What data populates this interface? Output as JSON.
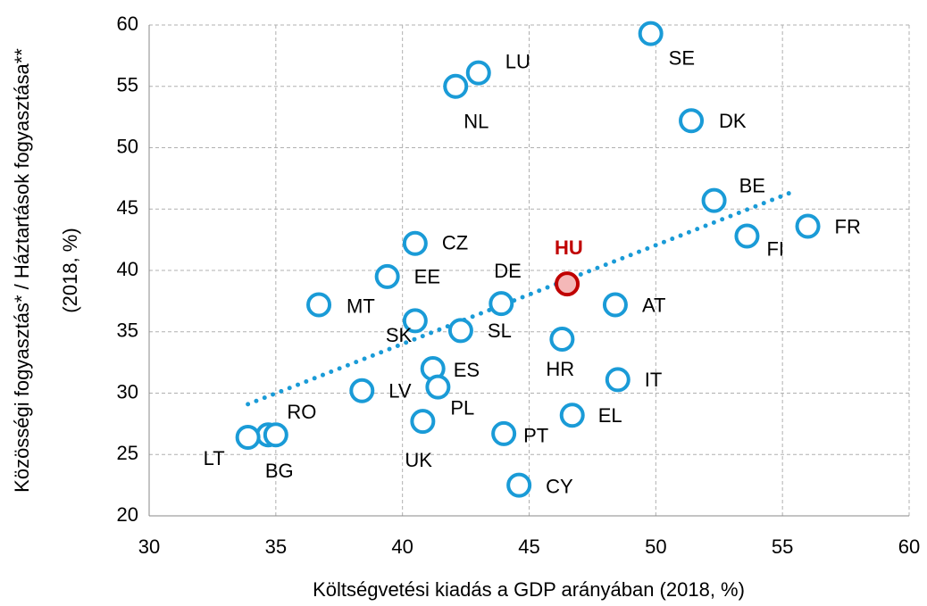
{
  "chart_data": {
    "type": "scatter",
    "xlabel": "Költségvetési kiadás a GDP arányában (2018, %)",
    "ylabel": [
      "Közösségi fogyasztás* / Háztartások fogyasztása**",
      "(2018, %)"
    ],
    "xlim": [
      30,
      60
    ],
    "xticks": [
      30,
      35,
      40,
      45,
      50,
      55,
      60
    ],
    "ylim": [
      20,
      60
    ],
    "yticks": [
      20,
      25,
      30,
      35,
      40,
      45,
      50,
      55,
      60
    ],
    "grid": true,
    "points": [
      {
        "label": "SE",
        "x": 49.8,
        "y": 59.3,
        "color": "#1a9bd7"
      },
      {
        "label": "LU",
        "x": 43.0,
        "y": 56.1,
        "color": "#1a9bd7"
      },
      {
        "label": "NL",
        "x": 42.1,
        "y": 55.0,
        "color": "#1a9bd7"
      },
      {
        "label": "DK",
        "x": 51.4,
        "y": 52.2,
        "color": "#1a9bd7"
      },
      {
        "label": "BE",
        "x": 52.3,
        "y": 45.7,
        "color": "#1a9bd7"
      },
      {
        "label": "FR",
        "x": 56.0,
        "y": 43.6,
        "color": "#1a9bd7"
      },
      {
        "label": "FI",
        "x": 53.6,
        "y": 42.8,
        "color": "#1a9bd7"
      },
      {
        "label": "CZ",
        "x": 40.5,
        "y": 42.2,
        "color": "#1a9bd7"
      },
      {
        "label": "HU",
        "x": 46.5,
        "y": 38.9,
        "color": "#c00000"
      },
      {
        "label": "EE",
        "x": 39.4,
        "y": 39.5,
        "color": "#1a9bd7"
      },
      {
        "label": "DE",
        "x": 43.9,
        "y": 37.3,
        "color": "#1a9bd7"
      },
      {
        "label": "AT",
        "x": 48.4,
        "y": 37.2,
        "color": "#1a9bd7"
      },
      {
        "label": "MT",
        "x": 36.7,
        "y": 37.2,
        "color": "#1a9bd7"
      },
      {
        "label": "SK",
        "x": 40.5,
        "y": 35.9,
        "color": "#1a9bd7"
      },
      {
        "label": "SL",
        "x": 42.3,
        "y": 35.1,
        "color": "#1a9bd7"
      },
      {
        "label": "HR",
        "x": 46.3,
        "y": 34.4,
        "color": "#1a9bd7"
      },
      {
        "label": "ES",
        "x": 41.2,
        "y": 32.0,
        "color": "#1a9bd7"
      },
      {
        "label": "IT",
        "x": 48.5,
        "y": 31.1,
        "color": "#1a9bd7"
      },
      {
        "label": "PL",
        "x": 41.4,
        "y": 30.5,
        "color": "#1a9bd7"
      },
      {
        "label": "LV",
        "x": 38.4,
        "y": 30.2,
        "color": "#1a9bd7"
      },
      {
        "label": "EL",
        "x": 46.7,
        "y": 28.2,
        "color": "#1a9bd7"
      },
      {
        "label": "UK",
        "x": 40.8,
        "y": 27.7,
        "color": "#1a9bd7"
      },
      {
        "label": "PT",
        "x": 44.0,
        "y": 26.7,
        "color": "#1a9bd7"
      },
      {
        "label": "RO",
        "x": 34.7,
        "y": 26.6,
        "color": "#1a9bd7"
      },
      {
        "label": "BG",
        "x": 35.0,
        "y": 26.6,
        "color": "#1a9bd7"
      },
      {
        "label": "LT",
        "x": 33.9,
        "y": 26.4,
        "color": "#1a9bd7"
      },
      {
        "label": "CY",
        "x": 44.6,
        "y": 22.5,
        "color": "#1a9bd7"
      }
    ],
    "trendline": {
      "x": [
        33.9,
        55.4
      ],
      "y": [
        29.1,
        46.4
      ],
      "color": "#1a9bd7"
    }
  }
}
